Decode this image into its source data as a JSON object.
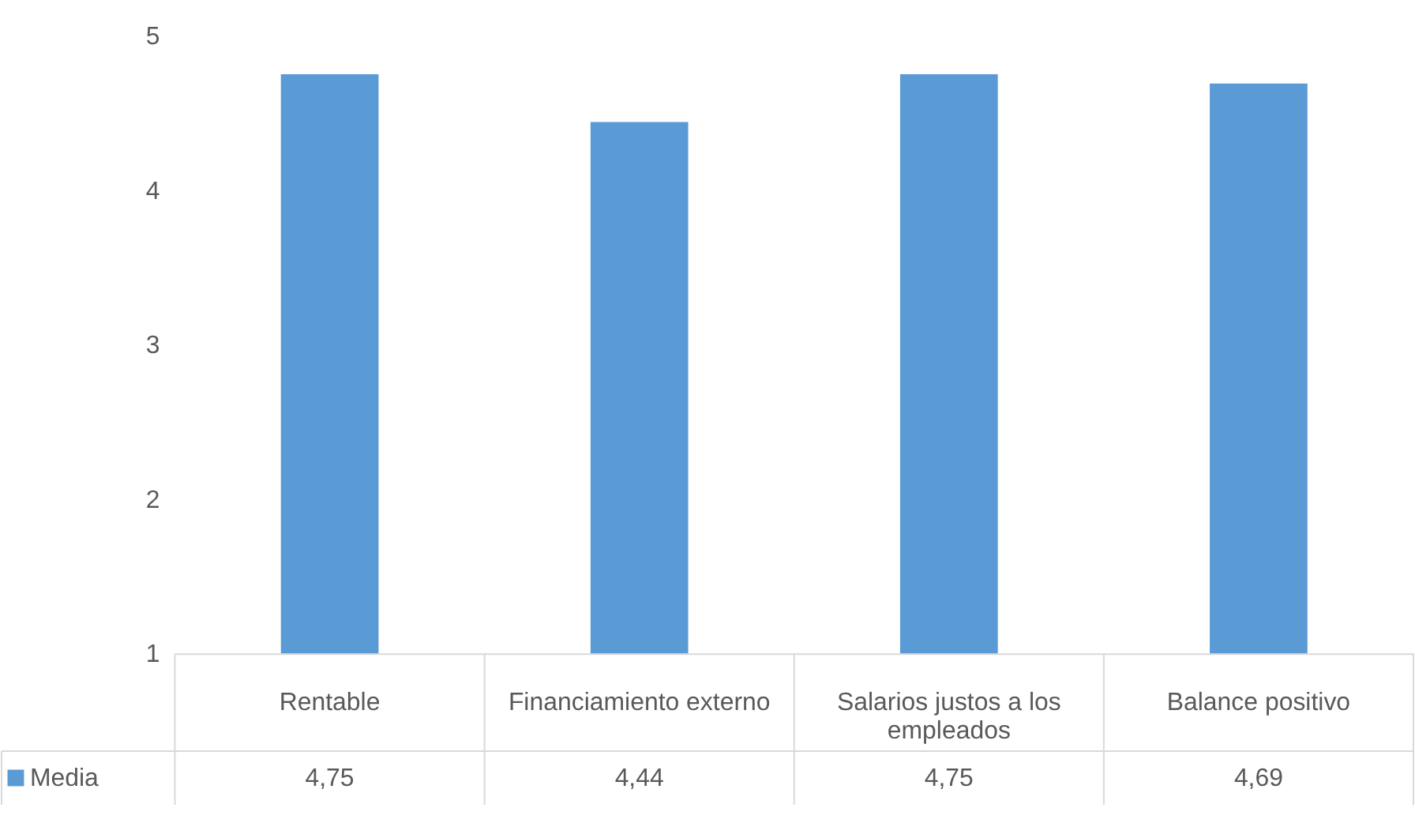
{
  "chart_data": {
    "type": "bar",
    "categories": [
      "Rentable",
      "Financiamiento externo",
      "Salarios justos a los empleados",
      "Balance positivo"
    ],
    "series": [
      {
        "name": "Media",
        "color": "#5b9bd5",
        "values": [
          4.75,
          4.44,
          4.75,
          4.69
        ],
        "value_labels": [
          "4,75",
          "4,44",
          "4,75",
          "4,69"
        ]
      }
    ],
    "ylim": [
      1,
      5
    ],
    "yticks": [
      1,
      2,
      3,
      4,
      5
    ],
    "grid": false,
    "legend": "bottom left"
  }
}
